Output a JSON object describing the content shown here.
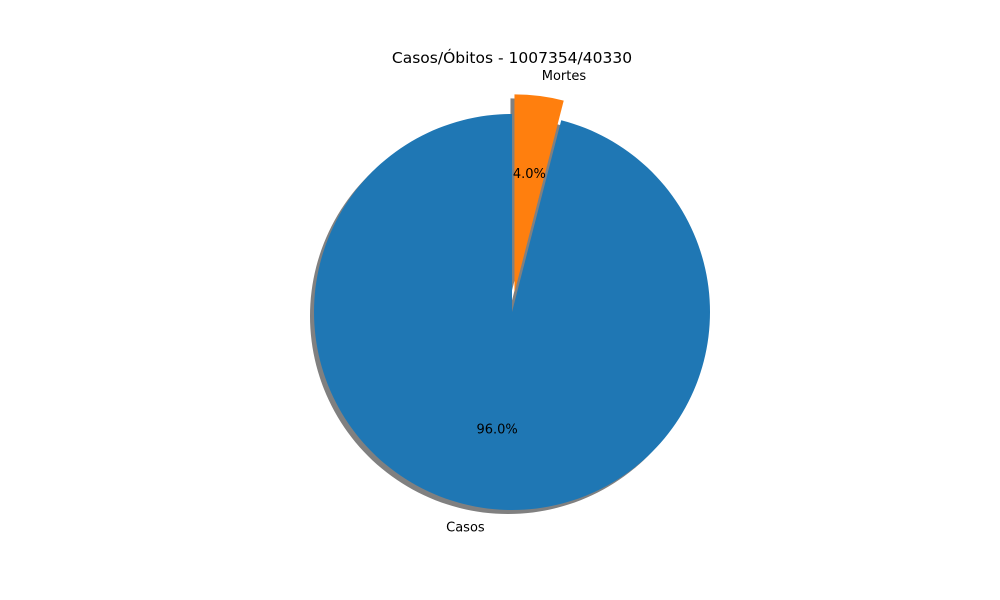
{
  "chart_data": {
    "type": "pie",
    "title": "Casos/Óbitos - 1007354/40330",
    "slices": [
      {
        "label": "Casos",
        "pct_label": "96.0%",
        "value": 96.0,
        "color": "#1f77b4"
      },
      {
        "label": "Mortes",
        "pct_label": "4.0%",
        "value": 4.0,
        "color": "#ff7f0e"
      }
    ],
    "start_angle_deg": 90,
    "direction": "counterclockwise",
    "exploded": "Mortes",
    "shadow": true,
    "shadow_color": "#808080"
  }
}
